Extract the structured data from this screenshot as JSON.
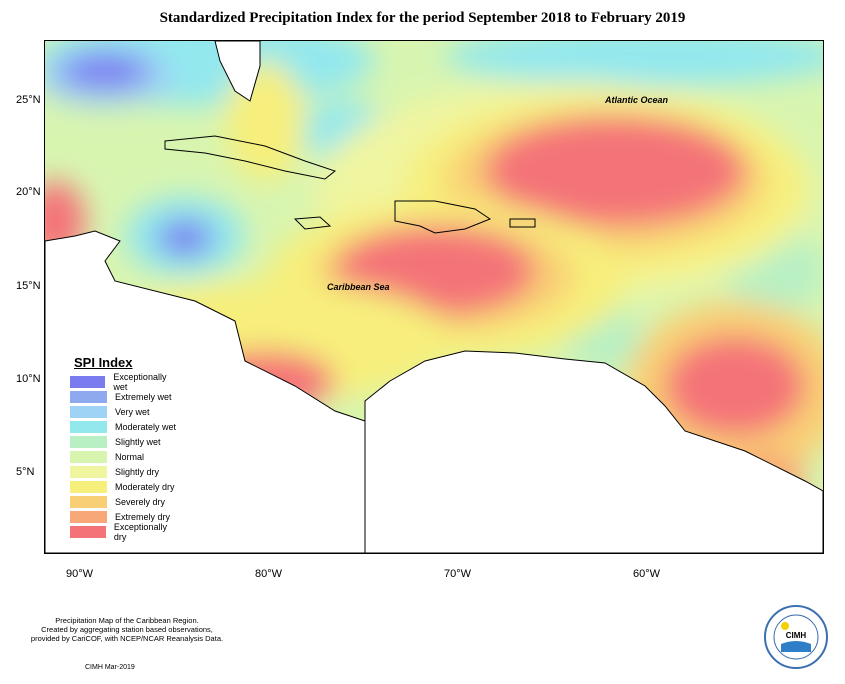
{
  "title": "Standardized Precipitation Index for the period September 2018 to February 2019",
  "labels": {
    "atlantic": "Atlantic Ocean",
    "caribbean": "Caribbean Sea"
  },
  "lat_labels": [
    "25°N",
    "20°N",
    "15°N",
    "10°N",
    "5°N"
  ],
  "lon_labels": [
    "90°W",
    "80°W",
    "70°W",
    "60°W"
  ],
  "legend": {
    "title": "SPI Index",
    "items": [
      {
        "label": "Exceptionally wet",
        "color": "#7b7bf0"
      },
      {
        "label": "Extremely wet",
        "color": "#8fa9ef"
      },
      {
        "label": "Very wet",
        "color": "#9fd3f6"
      },
      {
        "label": "Moderately wet",
        "color": "#93e8ee"
      },
      {
        "label": "Slightly wet",
        "color": "#b8f0c4"
      },
      {
        "label": "Normal",
        "color": "#d8f5b0"
      },
      {
        "label": "Slightly dry",
        "color": "#f0f5a0"
      },
      {
        "label": "Moderately dry",
        "color": "#f7ef7c"
      },
      {
        "label": "Severely dry",
        "color": "#f9cf75"
      },
      {
        "label": "Extremely dry",
        "color": "#f8a878"
      },
      {
        "label": "Exceptionally dry",
        "color": "#f47378"
      }
    ]
  },
  "credits": {
    "line1": "Precipitation Map of the Caribbean Region.",
    "line2": "Created by aggregating station based observations,",
    "line3": "provided by CariCOF, with NCEP/NCAR Reanalysis Data."
  },
  "date": "CIMH Mar-2019",
  "logo_text": "CIMH"
}
